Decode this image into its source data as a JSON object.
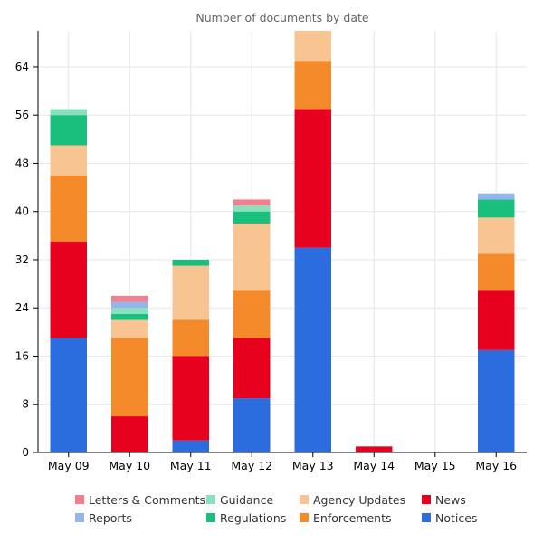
{
  "chart_data": {
    "type": "bar",
    "stacked": true,
    "title": "Number of documents by date",
    "xlabel": "",
    "ylabel": "",
    "ylim": [
      0,
      70
    ],
    "yticks": [
      0,
      8,
      16,
      24,
      32,
      40,
      48,
      56,
      64
    ],
    "grid": true,
    "legend_position": "bottom",
    "categories": [
      "May 09",
      "May 10",
      "May 11",
      "May 12",
      "May 13",
      "May 14",
      "May 15",
      "May 16"
    ],
    "series": [
      {
        "name": "Notices",
        "color": "#2b6cde",
        "values": [
          19,
          0,
          2,
          9,
          34,
          0,
          0,
          17
        ]
      },
      {
        "name": "News",
        "color": "#e8001f",
        "values": [
          16,
          6,
          14,
          10,
          23,
          1,
          0,
          10
        ]
      },
      {
        "name": "Enforcements",
        "color": "#f48a2a",
        "values": [
          11,
          13,
          6,
          8,
          8,
          0,
          0,
          6
        ]
      },
      {
        "name": "Agency Updates",
        "color": "#f8c592",
        "values": [
          5,
          3,
          9,
          11,
          5,
          0,
          0,
          6
        ]
      },
      {
        "name": "Regulations",
        "color": "#1abf7d",
        "values": [
          5,
          1,
          1,
          2,
          1,
          0,
          0,
          3
        ]
      },
      {
        "name": "Guidance",
        "color": "#88e0bd",
        "values": [
          1,
          1,
          0,
          1,
          0,
          0,
          0,
          0
        ]
      },
      {
        "name": "Reports",
        "color": "#94b4ec",
        "values": [
          0,
          1,
          0,
          0,
          0,
          0,
          0,
          1
        ]
      },
      {
        "name": "Letters & Comments",
        "color": "#f2808c",
        "values": [
          0,
          1,
          0,
          1,
          0,
          0,
          0,
          0
        ]
      }
    ],
    "legend_order": [
      "Letters & Comments",
      "Guidance",
      "Agency Updates",
      "News",
      "Reports",
      "Regulations",
      "Enforcements",
      "Notices"
    ]
  }
}
